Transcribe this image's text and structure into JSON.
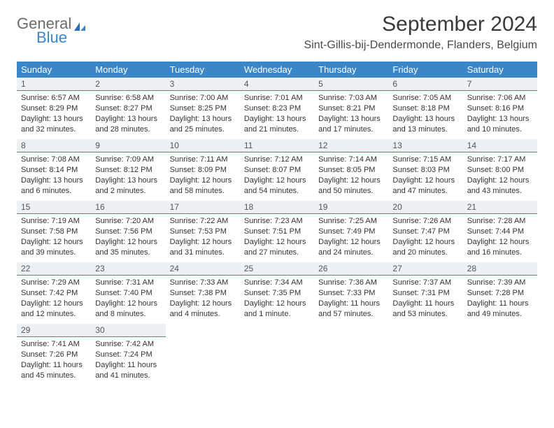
{
  "logo": {
    "text1": "General",
    "text2": "Blue"
  },
  "title": "September 2024",
  "subtitle": "Sint-Gillis-bij-Dendermonde, Flanders, Belgium",
  "colors": {
    "header_bg": "#3b86c7",
    "daynum_bg": "#eef1f3",
    "daynum_border": "#3b86c7"
  },
  "weekdays": [
    "Sunday",
    "Monday",
    "Tuesday",
    "Wednesday",
    "Thursday",
    "Friday",
    "Saturday"
  ],
  "weeks": [
    [
      {
        "n": "1",
        "sr": "Sunrise: 6:57 AM",
        "ss": "Sunset: 8:29 PM",
        "dl": "Daylight: 13 hours and 32 minutes."
      },
      {
        "n": "2",
        "sr": "Sunrise: 6:58 AM",
        "ss": "Sunset: 8:27 PM",
        "dl": "Daylight: 13 hours and 28 minutes."
      },
      {
        "n": "3",
        "sr": "Sunrise: 7:00 AM",
        "ss": "Sunset: 8:25 PM",
        "dl": "Daylight: 13 hours and 25 minutes."
      },
      {
        "n": "4",
        "sr": "Sunrise: 7:01 AM",
        "ss": "Sunset: 8:23 PM",
        "dl": "Daylight: 13 hours and 21 minutes."
      },
      {
        "n": "5",
        "sr": "Sunrise: 7:03 AM",
        "ss": "Sunset: 8:21 PM",
        "dl": "Daylight: 13 hours and 17 minutes."
      },
      {
        "n": "6",
        "sr": "Sunrise: 7:05 AM",
        "ss": "Sunset: 8:18 PM",
        "dl": "Daylight: 13 hours and 13 minutes."
      },
      {
        "n": "7",
        "sr": "Sunrise: 7:06 AM",
        "ss": "Sunset: 8:16 PM",
        "dl": "Daylight: 13 hours and 10 minutes."
      }
    ],
    [
      {
        "n": "8",
        "sr": "Sunrise: 7:08 AM",
        "ss": "Sunset: 8:14 PM",
        "dl": "Daylight: 13 hours and 6 minutes."
      },
      {
        "n": "9",
        "sr": "Sunrise: 7:09 AM",
        "ss": "Sunset: 8:12 PM",
        "dl": "Daylight: 13 hours and 2 minutes."
      },
      {
        "n": "10",
        "sr": "Sunrise: 7:11 AM",
        "ss": "Sunset: 8:09 PM",
        "dl": "Daylight: 12 hours and 58 minutes."
      },
      {
        "n": "11",
        "sr": "Sunrise: 7:12 AM",
        "ss": "Sunset: 8:07 PM",
        "dl": "Daylight: 12 hours and 54 minutes."
      },
      {
        "n": "12",
        "sr": "Sunrise: 7:14 AM",
        "ss": "Sunset: 8:05 PM",
        "dl": "Daylight: 12 hours and 50 minutes."
      },
      {
        "n": "13",
        "sr": "Sunrise: 7:15 AM",
        "ss": "Sunset: 8:03 PM",
        "dl": "Daylight: 12 hours and 47 minutes."
      },
      {
        "n": "14",
        "sr": "Sunrise: 7:17 AM",
        "ss": "Sunset: 8:00 PM",
        "dl": "Daylight: 12 hours and 43 minutes."
      }
    ],
    [
      {
        "n": "15",
        "sr": "Sunrise: 7:19 AM",
        "ss": "Sunset: 7:58 PM",
        "dl": "Daylight: 12 hours and 39 minutes."
      },
      {
        "n": "16",
        "sr": "Sunrise: 7:20 AM",
        "ss": "Sunset: 7:56 PM",
        "dl": "Daylight: 12 hours and 35 minutes."
      },
      {
        "n": "17",
        "sr": "Sunrise: 7:22 AM",
        "ss": "Sunset: 7:53 PM",
        "dl": "Daylight: 12 hours and 31 minutes."
      },
      {
        "n": "18",
        "sr": "Sunrise: 7:23 AM",
        "ss": "Sunset: 7:51 PM",
        "dl": "Daylight: 12 hours and 27 minutes."
      },
      {
        "n": "19",
        "sr": "Sunrise: 7:25 AM",
        "ss": "Sunset: 7:49 PM",
        "dl": "Daylight: 12 hours and 24 minutes."
      },
      {
        "n": "20",
        "sr": "Sunrise: 7:26 AM",
        "ss": "Sunset: 7:47 PM",
        "dl": "Daylight: 12 hours and 20 minutes."
      },
      {
        "n": "21",
        "sr": "Sunrise: 7:28 AM",
        "ss": "Sunset: 7:44 PM",
        "dl": "Daylight: 12 hours and 16 minutes."
      }
    ],
    [
      {
        "n": "22",
        "sr": "Sunrise: 7:29 AM",
        "ss": "Sunset: 7:42 PM",
        "dl": "Daylight: 12 hours and 12 minutes."
      },
      {
        "n": "23",
        "sr": "Sunrise: 7:31 AM",
        "ss": "Sunset: 7:40 PM",
        "dl": "Daylight: 12 hours and 8 minutes."
      },
      {
        "n": "24",
        "sr": "Sunrise: 7:33 AM",
        "ss": "Sunset: 7:38 PM",
        "dl": "Daylight: 12 hours and 4 minutes."
      },
      {
        "n": "25",
        "sr": "Sunrise: 7:34 AM",
        "ss": "Sunset: 7:35 PM",
        "dl": "Daylight: 12 hours and 1 minute."
      },
      {
        "n": "26",
        "sr": "Sunrise: 7:36 AM",
        "ss": "Sunset: 7:33 PM",
        "dl": "Daylight: 11 hours and 57 minutes."
      },
      {
        "n": "27",
        "sr": "Sunrise: 7:37 AM",
        "ss": "Sunset: 7:31 PM",
        "dl": "Daylight: 11 hours and 53 minutes."
      },
      {
        "n": "28",
        "sr": "Sunrise: 7:39 AM",
        "ss": "Sunset: 7:28 PM",
        "dl": "Daylight: 11 hours and 49 minutes."
      }
    ],
    [
      {
        "n": "29",
        "sr": "Sunrise: 7:41 AM",
        "ss": "Sunset: 7:26 PM",
        "dl": "Daylight: 11 hours and 45 minutes."
      },
      {
        "n": "30",
        "sr": "Sunrise: 7:42 AM",
        "ss": "Sunset: 7:24 PM",
        "dl": "Daylight: 11 hours and 41 minutes."
      },
      {
        "empty": true
      },
      {
        "empty": true
      },
      {
        "empty": true
      },
      {
        "empty": true
      },
      {
        "empty": true
      }
    ]
  ]
}
